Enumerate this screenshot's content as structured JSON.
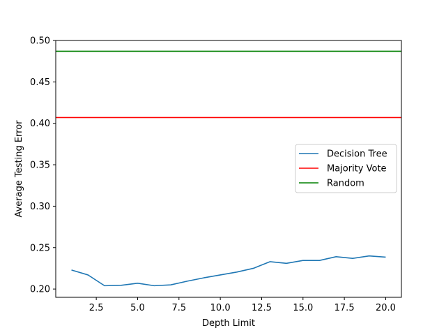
{
  "chart_data": {
    "type": "line",
    "title": "",
    "xlabel": "Depth Limit",
    "ylabel": "Average Testing Error",
    "xlim": [
      0.05,
      20.95
    ],
    "ylim": [
      0.19,
      0.5
    ],
    "xticks": [
      2.5,
      5.0,
      7.5,
      10.0,
      12.5,
      15.0,
      17.5,
      20.0
    ],
    "xtick_labels": [
      "2.5",
      "5.0",
      "7.5",
      "10.0",
      "12.5",
      "15.0",
      "17.5",
      "20.0"
    ],
    "yticks": [
      0.2,
      0.25,
      0.3,
      0.35,
      0.4,
      0.45,
      0.5
    ],
    "ytick_labels": [
      "0.20",
      "0.25",
      "0.30",
      "0.35",
      "0.40",
      "0.45",
      "0.50"
    ],
    "grid": false,
    "legend_position": "center-right",
    "series": [
      {
        "name": "Decision Tree",
        "color": "#1f77b4",
        "kind": "line",
        "x": [
          1,
          2,
          3,
          4,
          5,
          6,
          7,
          8,
          9,
          10,
          11,
          12,
          13,
          14,
          15,
          16,
          17,
          18,
          19,
          20
        ],
        "y": [
          0.223,
          0.217,
          0.204,
          0.2045,
          0.207,
          0.204,
          0.205,
          0.2095,
          0.2135,
          0.217,
          0.2205,
          0.225,
          0.233,
          0.231,
          0.2345,
          0.2345,
          0.239,
          0.237,
          0.24,
          0.2385
        ]
      },
      {
        "name": "Majority Vote",
        "color": "#ff0000",
        "kind": "hline",
        "y": 0.407
      },
      {
        "name": "Random",
        "color": "#008000",
        "kind": "hline",
        "y": 0.487
      }
    ]
  }
}
